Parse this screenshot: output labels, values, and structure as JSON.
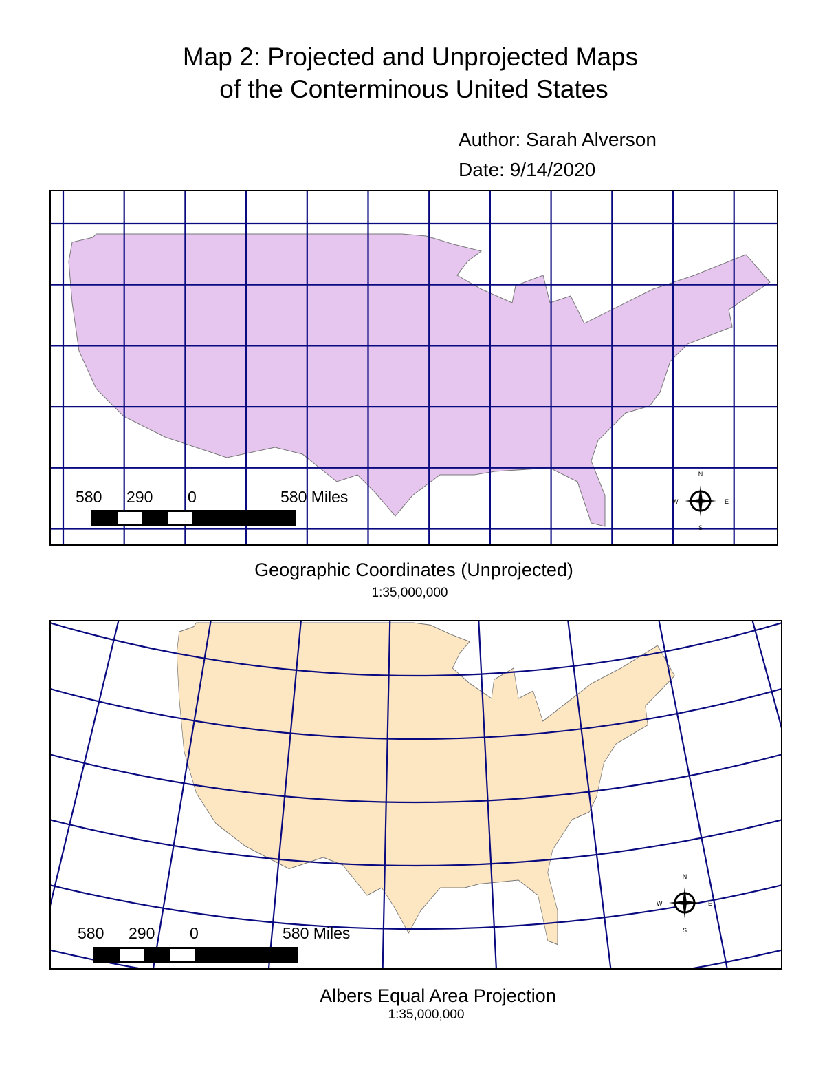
{
  "title": [
    "Map 2: Projected and Unprojected Maps",
    "of the Conterminous United States"
  ],
  "author": "Author: Sarah Alverson",
  "date": "Date: 9/14/2020",
  "maps": [
    {
      "caption": "Geographic Coordinates (Unprojected)",
      "scale": "1:35,000,000",
      "scale_bar": [
        "580",
        "290",
        "0",
        "580 Miles"
      ],
      "compass": [
        "N",
        "E",
        "S",
        "W"
      ]
    },
    {
      "caption": "Albers Equal Area Projection",
      "scale": "1:35,000,000",
      "scale_bar": [
        "580",
        "290",
        "0",
        "580 Miles"
      ],
      "compass": [
        "N",
        "E",
        "S",
        "W"
      ]
    }
  ]
}
